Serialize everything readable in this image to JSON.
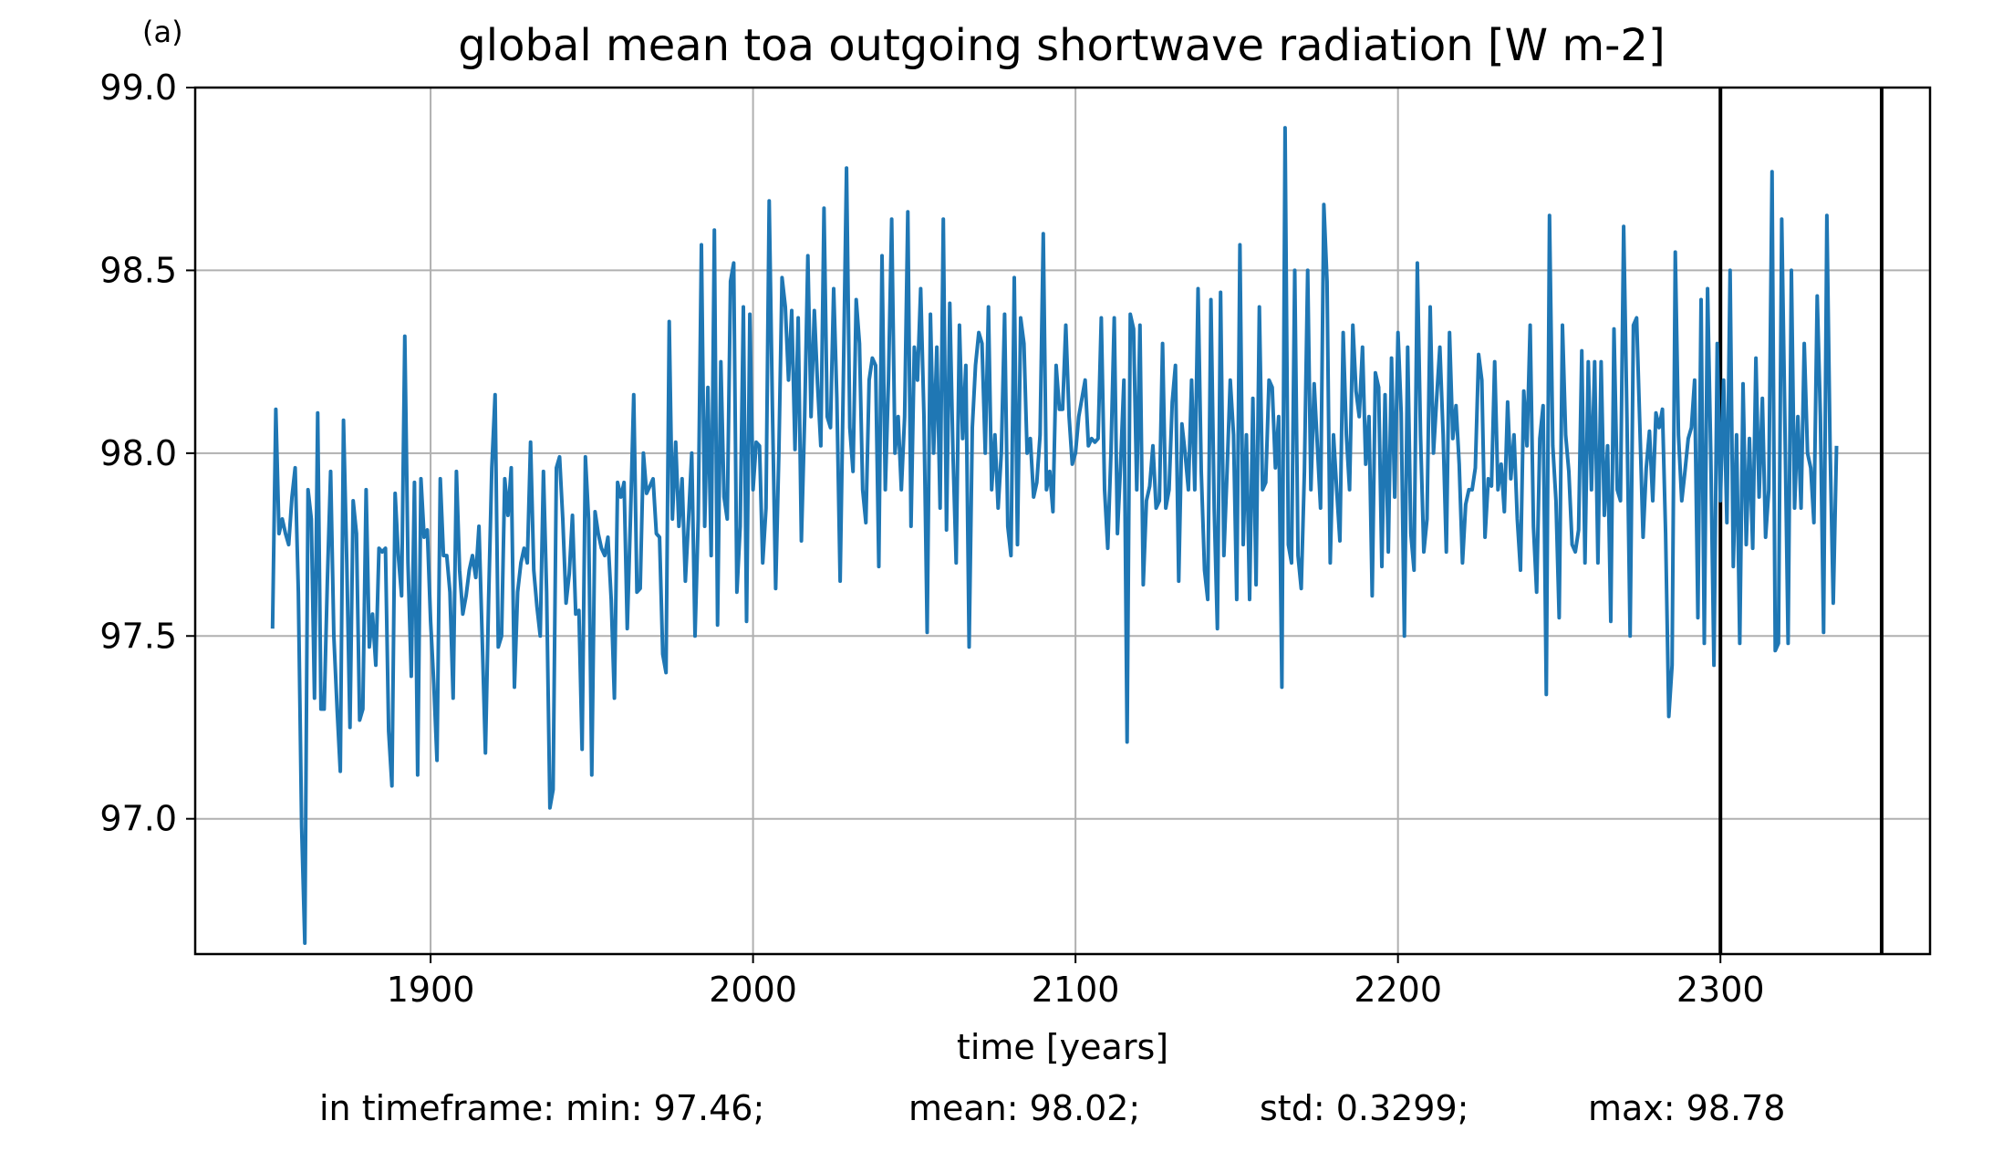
{
  "chart_data": {
    "type": "line",
    "panel_label": "(a)",
    "title": "global mean toa outgoing shortwave radiation [W m-2]",
    "xlabel": "time [years]",
    "ylabel": "",
    "xlim": [
      1827,
      2365
    ],
    "ylim": [
      96.63,
      99.0
    ],
    "xticks": [
      1900,
      2000,
      2100,
      2200,
      2300
    ],
    "yticks": [
      97.0,
      97.5,
      98.0,
      98.5,
      99.0
    ],
    "grid": true,
    "vertical_lines": [
      2300,
      2350
    ],
    "series": [
      {
        "name": "",
        "color": "#1f77b4",
        "x_start": 1851,
        "x_step": 1,
        "values": [
          97.52,
          98.12,
          97.78,
          97.82,
          97.78,
          97.75,
          97.88,
          97.96,
          97.62,
          96.98,
          96.66,
          97.9,
          97.82,
          97.33,
          98.11,
          97.3,
          97.3,
          97.65,
          97.95,
          97.5,
          97.3,
          97.13,
          98.09,
          97.7,
          97.25,
          97.87,
          97.78,
          97.27,
          97.3,
          97.9,
          97.47,
          97.56,
          97.42,
          97.74,
          97.73,
          97.74,
          97.24,
          97.09,
          97.89,
          97.72,
          97.61,
          98.32,
          97.7,
          97.39,
          97.92,
          97.12,
          97.93,
          97.77,
          97.79,
          97.54,
          97.37,
          97.16,
          97.93,
          97.72,
          97.72,
          97.62,
          97.33,
          97.95,
          97.68,
          97.56,
          97.61,
          97.68,
          97.72,
          97.66,
          97.8,
          97.5,
          97.18,
          97.6,
          97.96,
          98.16,
          97.47,
          97.5,
          97.93,
          97.83,
          97.96,
          97.36,
          97.62,
          97.7,
          97.74,
          97.7,
          98.03,
          97.68,
          97.58,
          97.5,
          97.95,
          97.62,
          97.03,
          97.08,
          97.96,
          97.99,
          97.82,
          97.59,
          97.67,
          97.83,
          97.56,
          97.57,
          97.19,
          97.99,
          97.82,
          97.12,
          97.84,
          97.78,
          97.74,
          97.72,
          97.77,
          97.6,
          97.33,
          97.92,
          97.88,
          97.92,
          97.52,
          97.83,
          98.16,
          97.62,
          97.63,
          98.0,
          97.89,
          97.91,
          97.93,
          97.78,
          97.77,
          97.45,
          97.4,
          98.36,
          97.82,
          98.03,
          97.8,
          97.93,
          97.65,
          97.82,
          98.0,
          97.5,
          97.82,
          98.57,
          97.8,
          98.18,
          97.72,
          98.61,
          97.53,
          98.25,
          97.88,
          97.82,
          98.47,
          98.52,
          97.62,
          97.8,
          98.4,
          97.54,
          98.38,
          97.9,
          98.03,
          98.02,
          97.7,
          97.85,
          98.69,
          98.13,
          97.63,
          98.0,
          98.48,
          98.4,
          98.2,
          98.39,
          98.01,
          98.37,
          97.76,
          98.1,
          98.54,
          98.1,
          98.39,
          98.19,
          98.02,
          98.67,
          98.1,
          98.07,
          98.45,
          98.15,
          97.65,
          98.2,
          98.78,
          98.07,
          97.95,
          98.42,
          98.3,
          97.9,
          97.81,
          98.2,
          98.26,
          98.24,
          97.69,
          98.54,
          97.9,
          98.2,
          98.64,
          98.0,
          98.1,
          97.9,
          98.1,
          98.66,
          97.8,
          98.29,
          98.2,
          98.45,
          98.1,
          97.51,
          98.38,
          98.0,
          98.29,
          97.85,
          98.64,
          97.79,
          98.41,
          98.0,
          97.7,
          98.35,
          98.04,
          98.24,
          97.47,
          98.07,
          98.24,
          98.33,
          98.3,
          98.0,
          98.4,
          97.9,
          98.05,
          97.85,
          98.0,
          98.38,
          97.8,
          97.72,
          98.48,
          97.75,
          98.37,
          98.3,
          98.0,
          98.04,
          97.88,
          97.92,
          98.05,
          98.6,
          97.9,
          97.95,
          97.84,
          98.24,
          98.12,
          98.12,
          98.35,
          98.1,
          97.97,
          98.0,
          98.1,
          98.15,
          98.2,
          98.02,
          98.04,
          98.03,
          98.04,
          98.37,
          97.9,
          97.74,
          98.0,
          98.37,
          97.78,
          97.97,
          98.2,
          97.21,
          98.38,
          98.34,
          97.9,
          98.35,
          97.64,
          97.87,
          97.91,
          98.02,
          97.85,
          97.87,
          98.3,
          97.85,
          97.9,
          98.14,
          98.24,
          97.65,
          98.08,
          98.0,
          97.9,
          98.2,
          97.9,
          98.45,
          97.95,
          97.68,
          97.6,
          98.42,
          97.85,
          97.52,
          98.44,
          97.72,
          97.95,
          98.2,
          98.05,
          97.6,
          98.57,
          97.75,
          98.05,
          97.6,
          98.15,
          97.64,
          98.4,
          97.9,
          97.92,
          98.2,
          98.18,
          97.96,
          98.1,
          97.36,
          98.89,
          97.75,
          97.7,
          98.5,
          97.72,
          97.63,
          97.95,
          98.5,
          97.9,
          98.19,
          98.02,
          97.85,
          98.68,
          98.47,
          97.7,
          98.05,
          97.9,
          97.76,
          98.33,
          98.05,
          97.9,
          98.35,
          98.17,
          98.1,
          98.29,
          97.97,
          98.1,
          97.61,
          98.22,
          98.18,
          97.69,
          98.16,
          97.73,
          98.26,
          97.88,
          98.33,
          98.11,
          97.5,
          98.29,
          97.78,
          97.68,
          98.52,
          98.05,
          97.73,
          97.82,
          98.4,
          98.0,
          98.15,
          98.29,
          98.05,
          97.73,
          98.33,
          98.04,
          98.13,
          97.97,
          97.7,
          97.86,
          97.9,
          97.9,
          97.96,
          98.27,
          98.2,
          97.77,
          97.93,
          97.91,
          98.25,
          97.9,
          97.97,
          97.84,
          98.14,
          97.93,
          98.05,
          97.82,
          97.68,
          98.17,
          98.02,
          98.35,
          97.8,
          97.62,
          98.04,
          98.13,
          97.34,
          98.65,
          98.02,
          97.87,
          97.55,
          98.35,
          98.05,
          97.95,
          97.75,
          97.73,
          97.79,
          98.28,
          97.7,
          98.25,
          97.9,
          98.25,
          97.7,
          98.25,
          97.83,
          98.02,
          97.54,
          98.34,
          97.9,
          97.87,
          98.62,
          98.1,
          97.5,
          98.35,
          98.37,
          98.08,
          97.77,
          97.96,
          98.06,
          97.87,
          98.11,
          98.07,
          98.12,
          97.78,
          97.28,
          97.42,
          98.55,
          98.05,
          97.87,
          97.95,
          98.04,
          98.07,
          98.2,
          97.55,
          98.42,
          97.48,
          98.45,
          98.0,
          97.42,
          98.3,
          97.87,
          98.2,
          97.81,
          98.5,
          97.69,
          98.05,
          97.48,
          98.19,
          97.75,
          98.04,
          97.74,
          98.26,
          97.88,
          98.15,
          97.77,
          97.9,
          98.77,
          97.46,
          97.48,
          98.64,
          98.08,
          97.48,
          98.5,
          97.85,
          98.1,
          97.85,
          98.3,
          98.0,
          97.96,
          97.81,
          98.43,
          98.1,
          97.51,
          98.65,
          98.02,
          97.59,
          98.02
        ]
      }
    ]
  },
  "stats": {
    "min": "in timeframe: min: 97.46;",
    "mean": "mean: 98.02;",
    "std": "std: 0.3299;",
    "max": "max: 98.78"
  }
}
